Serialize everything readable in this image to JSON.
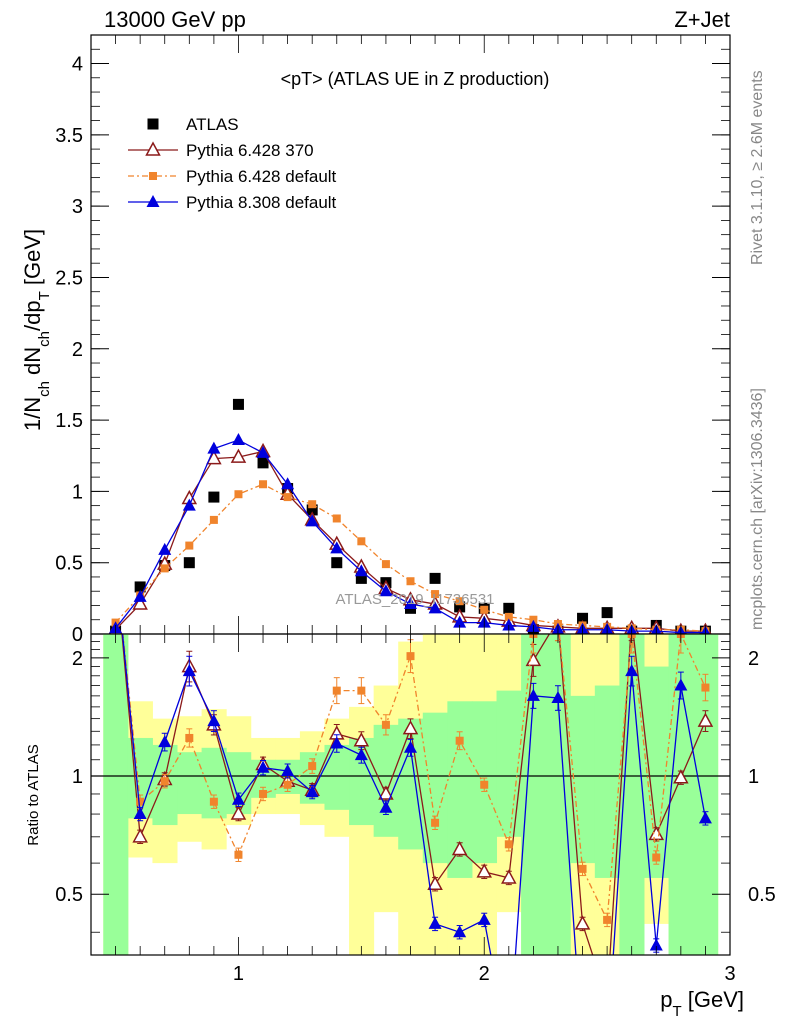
{
  "header": {
    "left": "13000 GeV pp",
    "right": "Z+Jet"
  },
  "side_labels": {
    "rivet": "Rivet 3.1.10, ≥ 2.6M events",
    "mcplots": "mcplots.cern.ch [arXiv:1306.3436]"
  },
  "watermark": "ATLAS_2019_I1736531",
  "chart_data": [
    {
      "type": "scatter",
      "title": "<pT> (ATLAS UE in Z production)",
      "ylabel": "1/N_ch dN_ch/dp_T [GeV]",
      "xlim": [
        0.4,
        3.0
      ],
      "ylim": [
        0,
        4.2
      ],
      "yticks": [
        0,
        0.5,
        1,
        1.5,
        2,
        2.5,
        3,
        3.5,
        4
      ],
      "ytick_labels": [
        "0",
        "0.5",
        "1",
        "1.5",
        "2",
        "2.5",
        "3",
        "3.5",
        "4"
      ],
      "x": [
        0.5,
        0.6,
        0.7,
        0.8,
        0.9,
        1.0,
        1.1,
        1.2,
        1.3,
        1.4,
        1.5,
        1.6,
        1.7,
        1.8,
        1.9,
        2.0,
        2.1,
        2.2,
        2.3,
        2.4,
        2.5,
        2.6,
        2.7,
        2.8,
        2.9
      ],
      "legend_placement": "top-left",
      "series": [
        {
          "name": "ATLAS",
          "color": "#000000",
          "marker": "square",
          "values": [
            0.02,
            0.33,
            0.48,
            0.5,
            0.96,
            1.61,
            1.2,
            1.02,
            0.87,
            0.5,
            0.39,
            0.36,
            0.18,
            0.39,
            0.19,
            0.18,
            0.18,
            0.03,
            0.02,
            0.11,
            0.15,
            0.02,
            0.06,
            0.02,
            0.02
          ]
        },
        {
          "name": "Pythia 6.428 370",
          "color": "#8b1a1a",
          "marker": "open-triangle",
          "values": [
            0.03,
            0.21,
            0.49,
            0.95,
            1.23,
            1.24,
            1.28,
            0.98,
            0.8,
            0.63,
            0.47,
            0.32,
            0.24,
            0.21,
            0.12,
            0.11,
            0.09,
            0.06,
            0.05,
            0.04,
            0.04,
            0.04,
            0.04,
            0.02,
            0.02
          ]
        },
        {
          "name": "Pythia 6.428 default",
          "color": "#f0842c",
          "marker": "filled-square",
          "values": [
            0.08,
            0.27,
            0.46,
            0.62,
            0.8,
            0.98,
            1.05,
            0.96,
            0.91,
            0.81,
            0.65,
            0.49,
            0.37,
            0.28,
            0.23,
            0.17,
            0.12,
            0.1,
            0.07,
            0.06,
            0.05,
            0.04,
            0.03,
            0.03,
            0.02
          ]
        },
        {
          "name": "Pythia 8.308 default",
          "color": "#0000dd",
          "marker": "filled-triangle",
          "values": [
            0.04,
            0.26,
            0.59,
            0.9,
            1.3,
            1.36,
            1.27,
            1.05,
            0.79,
            0.6,
            0.44,
            0.3,
            0.21,
            0.18,
            0.08,
            0.08,
            0.06,
            0.05,
            0.03,
            0.03,
            0.03,
            0.02,
            0.02,
            0.01,
            0.01
          ]
        }
      ]
    },
    {
      "type": "line",
      "ylabel": "Ratio to ATLAS",
      "xlabel": "p_T [GeV]",
      "xlim": [
        0.4,
        3.0
      ],
      "ylim": [
        0.35,
        2.3
      ],
      "xticks": [
        1,
        2,
        3
      ],
      "xtick_labels": [
        "1",
        "2",
        "3"
      ],
      "yticks": [
        0.5,
        1,
        2
      ],
      "ytick_labels": [
        "0.5",
        "1",
        "2"
      ],
      "reference_line": 1,
      "x": [
        0.5,
        0.6,
        0.7,
        0.8,
        0.9,
        1.0,
        1.1,
        1.2,
        1.3,
        1.4,
        1.5,
        1.6,
        1.7,
        1.8,
        1.9,
        2.0,
        2.1,
        2.2,
        2.3,
        2.4,
        2.5,
        2.6,
        2.7,
        2.8,
        2.9
      ],
      "bands": {
        "yellow": [
          [
            0.35,
            2.3
          ],
          [
            0.62,
            1.55
          ],
          [
            0.6,
            1.4
          ],
          [
            0.68,
            1.42
          ],
          [
            0.65,
            1.48
          ],
          [
            0.75,
            1.42
          ],
          [
            0.8,
            1.25
          ],
          [
            0.8,
            1.25
          ],
          [
            0.75,
            1.3
          ],
          [
            0.7,
            1.4
          ],
          [
            0.35,
            1.5
          ],
          [
            0.45,
            1.7
          ],
          [
            0.35,
            2.2
          ],
          [
            0.35,
            2.3
          ],
          [
            0.35,
            2.3
          ],
          [
            0.35,
            2.3
          ],
          [
            0.45,
            2.3
          ],
          [
            0.35,
            2.3
          ],
          [
            0.35,
            2.3
          ],
          [
            0.35,
            2.3
          ],
          [
            0.35,
            2.3
          ],
          [
            0.35,
            2.3
          ],
          [
            0.42,
            2.3
          ],
          [
            0.35,
            2.3
          ],
          [
            0.35,
            2.3
          ]
        ],
        "green": [
          [
            0.35,
            2.3
          ],
          [
            0.78,
            1.25
          ],
          [
            0.75,
            1.2
          ],
          [
            0.8,
            1.15
          ],
          [
            0.78,
            1.18
          ],
          [
            0.8,
            1.15
          ],
          [
            0.88,
            1.1
          ],
          [
            0.9,
            1.1
          ],
          [
            0.85,
            1.15
          ],
          [
            0.82,
            1.2
          ],
          [
            0.75,
            1.25
          ],
          [
            0.7,
            1.35
          ],
          [
            0.65,
            1.4
          ],
          [
            0.6,
            1.45
          ],
          [
            0.55,
            1.55
          ],
          [
            0.6,
            1.55
          ],
          [
            0.7,
            1.65
          ],
          [
            0.35,
            2.3
          ],
          [
            0.35,
            2.3
          ],
          [
            0.6,
            1.6
          ],
          [
            0.55,
            1.7
          ],
          [
            0.35,
            2.3
          ],
          [
            0.55,
            1.9
          ],
          [
            0.35,
            2.3
          ],
          [
            0.35,
            2.3
          ]
        ]
      },
      "series": [
        {
          "name": "Pythia 6.428 370",
          "color": "#8b1a1a",
          "marker": "open-triangle",
          "values": [
            3.5,
            0.7,
            0.98,
            1.9,
            1.35,
            0.8,
            1.07,
            0.97,
            0.92,
            1.28,
            1.23,
            0.9,
            1.32,
            0.53,
            0.65,
            0.57,
            0.55,
            1.97,
            2.5,
            0.42,
            0.27,
            2.5,
            0.71,
            0.99,
            1.38
          ]
        },
        {
          "name": "Pythia 6.428 default",
          "color": "#f0842c",
          "marker": "filled-square",
          "values": [
            3.5,
            0.86,
            0.97,
            1.25,
            0.86,
            0.63,
            0.9,
            0.95,
            1.06,
            1.65,
            1.65,
            1.35,
            2.02,
            0.76,
            1.23,
            0.95,
            0.67,
            2.3,
            2.5,
            0.58,
            0.43,
            2.3,
            0.62,
            2.3,
            1.68
          ]
        },
        {
          "name": "Pythia 8.308 default",
          "color": "#0000dd",
          "marker": "filled-triangle",
          "values": [
            3.5,
            0.8,
            1.22,
            1.85,
            1.38,
            0.87,
            1.05,
            1.03,
            0.91,
            1.21,
            1.13,
            0.83,
            1.18,
            0.42,
            0.4,
            0.43,
            0.2,
            1.6,
            1.58,
            0.2,
            0.2,
            1.85,
            0.37,
            1.7,
            0.78
          ]
        }
      ]
    }
  ]
}
